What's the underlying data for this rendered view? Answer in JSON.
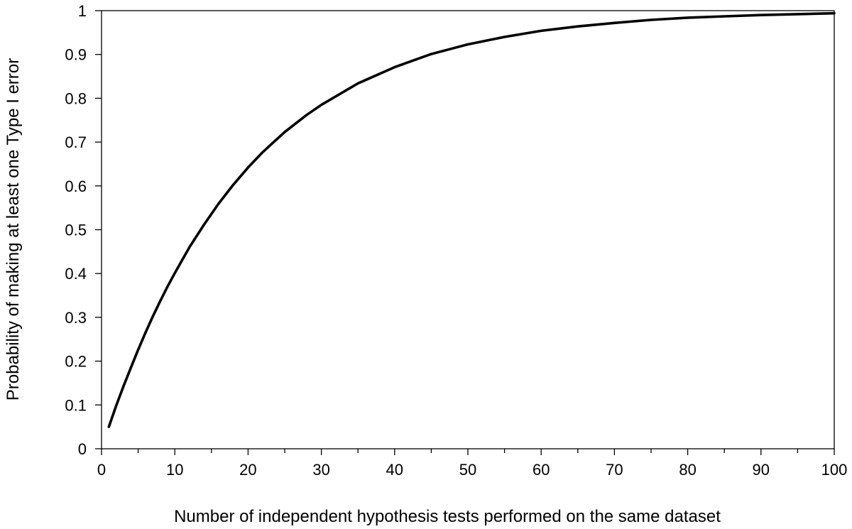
{
  "chart_data": {
    "type": "line",
    "title": "",
    "xlabel": "Number of independent hypothesis tests performed on the same dataset",
    "ylabel": "Probability of making at least one Type I error",
    "xlim": [
      0,
      100
    ],
    "ylim": [
      0,
      1
    ],
    "x_ticks": [
      "0",
      "10",
      "20",
      "30",
      "40",
      "50",
      "60",
      "70",
      "80",
      "90",
      "100"
    ],
    "y_ticks": [
      "0",
      "0.1",
      "0.2",
      "0.3",
      "0.4",
      "0.5",
      "0.6",
      "0.7",
      "0.8",
      "0.9",
      "1"
    ],
    "grid": false,
    "legend": "none",
    "series": [
      {
        "color": "#000000",
        "x": [
          1,
          2,
          3,
          4,
          5,
          6,
          7,
          8,
          9,
          10,
          12,
          14,
          16,
          18,
          20,
          22,
          25,
          28,
          30,
          35,
          40,
          45,
          50,
          55,
          60,
          65,
          70,
          75,
          80,
          85,
          90,
          95,
          100
        ],
        "y": [
          0.05,
          0.098,
          0.143,
          0.185,
          0.226,
          0.265,
          0.302,
          0.337,
          0.37,
          0.401,
          0.46,
          0.512,
          0.56,
          0.603,
          0.642,
          0.677,
          0.723,
          0.762,
          0.785,
          0.834,
          0.871,
          0.901,
          0.923,
          0.94,
          0.954,
          0.964,
          0.972,
          0.979,
          0.984,
          0.987,
          0.99,
          0.992,
          0.994
        ]
      }
    ]
  }
}
